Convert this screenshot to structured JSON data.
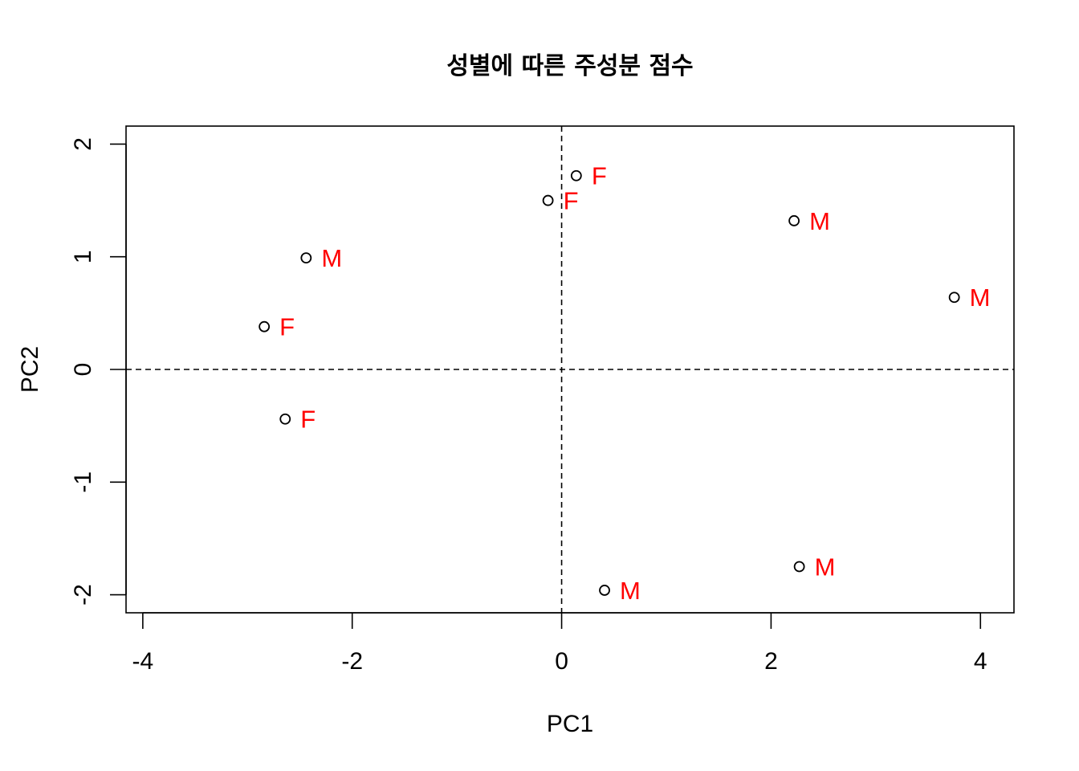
{
  "chart_data": {
    "type": "scatter",
    "title": "성별에 따른 주성분 점수",
    "xlabel": "PC1",
    "ylabel": "PC2",
    "xlim": [
      -4.16,
      4.32
    ],
    "ylim": [
      -2.16,
      2.16
    ],
    "x_ticks": [
      -4,
      -2,
      0,
      2,
      4
    ],
    "y_ticks": [
      -2,
      -1,
      0,
      1,
      2
    ],
    "x_tick_labels": [
      "-4",
      "-2",
      "0",
      "2",
      "4"
    ],
    "y_tick_labels": [
      "-2",
      "-1",
      "0",
      "1",
      "2"
    ],
    "reference_lines": [
      {
        "axis": "x",
        "value": 0,
        "style": "dashed"
      },
      {
        "axis": "y",
        "value": 0,
        "style": "dashed"
      }
    ],
    "grid": false,
    "marker": "open-circle",
    "label_color": "#ff0000",
    "points": [
      {
        "x": 0.14,
        "y": 1.72,
        "label": "F"
      },
      {
        "x": -0.13,
        "y": 1.5,
        "label": "F"
      },
      {
        "x": 2.22,
        "y": 1.32,
        "label": "M"
      },
      {
        "x": -2.44,
        "y": 0.99,
        "label": "M"
      },
      {
        "x": 3.75,
        "y": 0.64,
        "label": "M"
      },
      {
        "x": -2.84,
        "y": 0.38,
        "label": "F"
      },
      {
        "x": -2.64,
        "y": -0.44,
        "label": "F"
      },
      {
        "x": 2.27,
        "y": -1.75,
        "label": "M"
      },
      {
        "x": 0.41,
        "y": -1.96,
        "label": "M"
      }
    ]
  }
}
